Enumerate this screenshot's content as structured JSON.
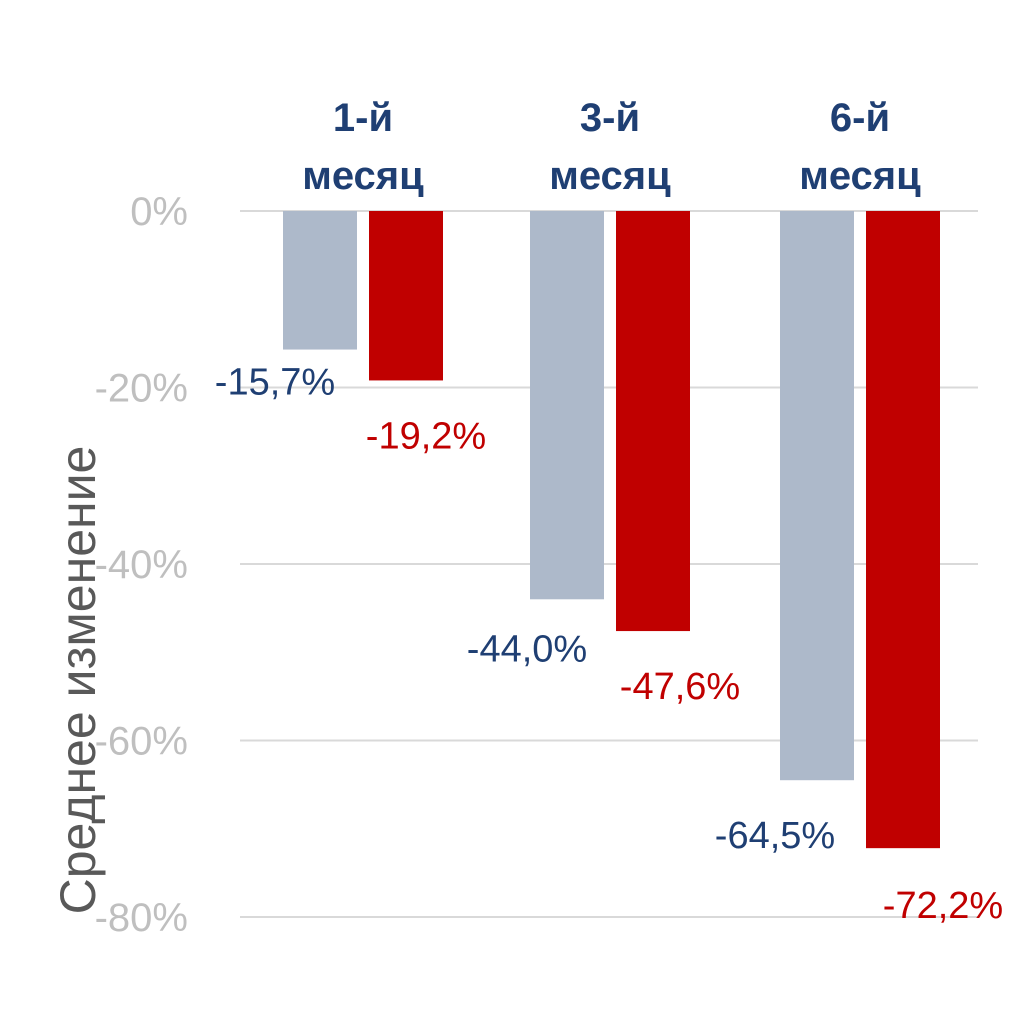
{
  "chart_data": {
    "type": "bar",
    "title": "",
    "ylabel": "Среднее изменение",
    "xlabel": "",
    "categories": [
      [
        "1-й",
        "месяц"
      ],
      [
        "3-й",
        "месяц"
      ],
      [
        "6-й",
        "месяц"
      ]
    ],
    "series": [
      {
        "values": [
          -15.7,
          -44.0,
          -64.5
        ],
        "labels": [
          "-15,7%",
          "-44,0%",
          "-64,5%"
        ],
        "color": "#adb9ca",
        "label_color": "#1f3f73"
      },
      {
        "values": [
          -19.2,
          -47.6,
          -72.2
        ],
        "labels": [
          "-19,2%",
          "-47,6%",
          "-72,2%"
        ],
        "color": "#c00000",
        "label_color": "#c00000"
      }
    ],
    "ylim": [
      -80,
      0
    ],
    "yticks": [
      0,
      -20,
      -40,
      -60,
      -80
    ],
    "ytick_labels": [
      "0%",
      "-20%",
      "-40%",
      "-60%",
      "-80%"
    ],
    "grid": true,
    "legend": "none",
    "category_position": "top",
    "colors": {
      "gridline": "#d9d9d9",
      "tick_text": "#bfbfbf",
      "category_text": "#1f3f73",
      "axis_title": "#595959"
    }
  }
}
